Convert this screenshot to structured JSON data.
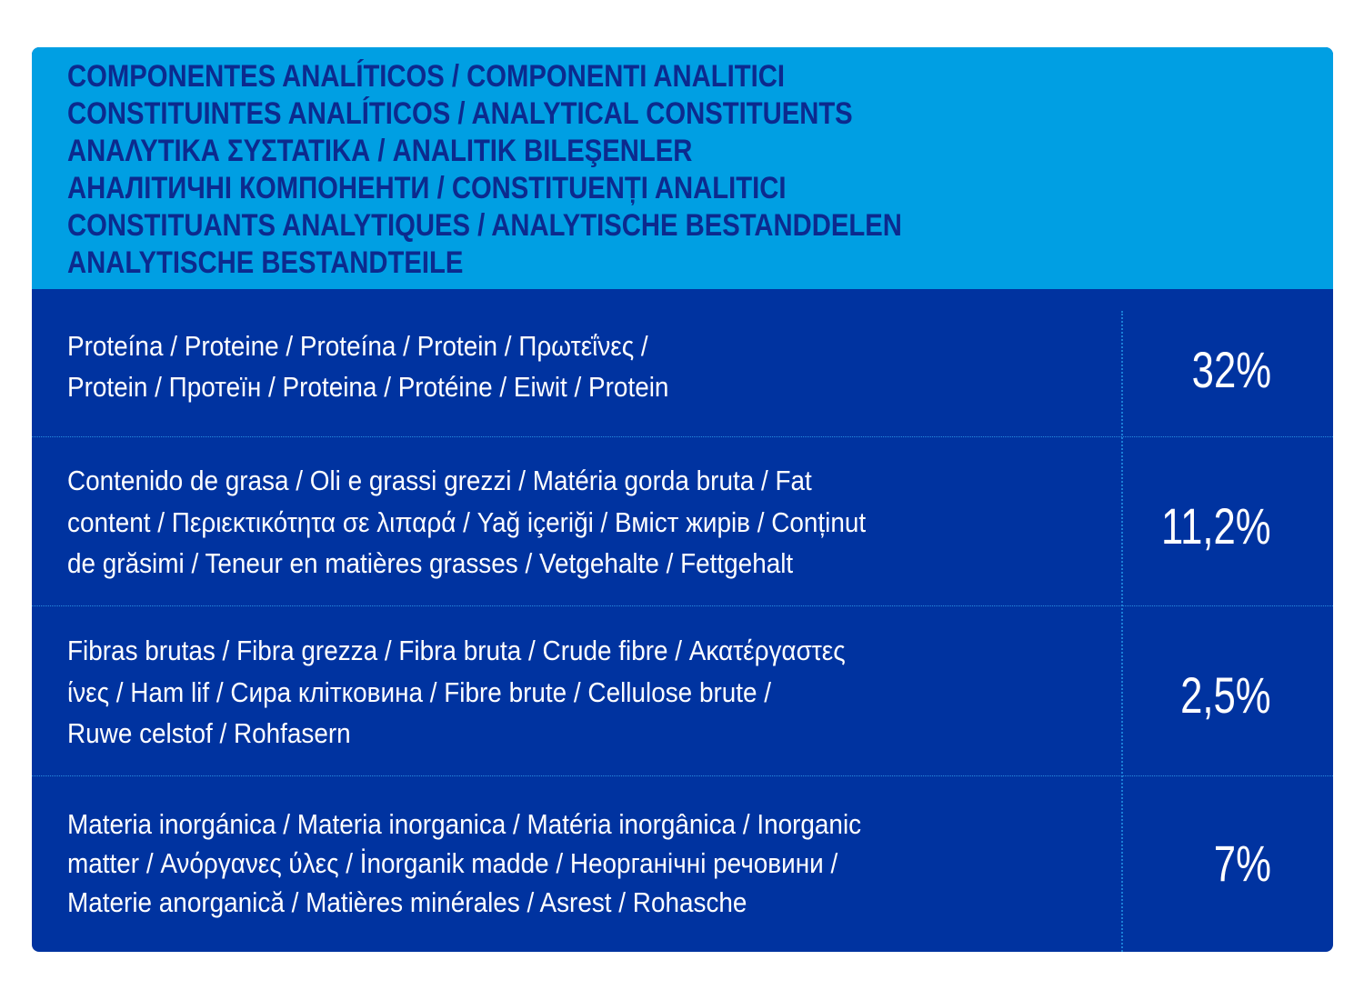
{
  "header": {
    "lines": [
      "COMPONENTES ANALÍTICOS / COMPONENTI ANALITICI",
      "CONSTITUINTES ANALÍTICOS / ANALYTICAL CONSTITUENTS",
      "ΑΝΑΛΥΤΙΚΑ ΣΥΣΤΑΤΙΚΑ / ANALITIK BILEŞENLER",
      "АНАЛІТИЧНІ КОМПОНЕНТИ / CONSTITUENȚI ANALITICI",
      "CONSTITUANTS ANALYTIQUES / ANALYTISCHE BESTANDDELEN",
      "ANALYTISCHE BESTANDTEILE"
    ]
  },
  "rows": [
    {
      "lines": [
        "Proteína / Proteine / Proteína / Protein / Πρωτεΐνες /",
        "Protein / Протеїн / Proteina / Protéine / Eiwit / Protein"
      ],
      "value": "32%"
    },
    {
      "lines": [
        "Contenido de grasa / Oli e grassi grezzi / Matéria gorda bruta / Fat",
        "content / Περιεκτικότητα σε λιπαρά / Yağ içeriği / Вміст жирів / Conținut",
        "de grăsimi / Teneur en matières grasses / Vetgehalte / Fettgehalt"
      ],
      "value": "11,2%"
    },
    {
      "lines": [
        "Fibras brutas / Fibra grezza / Fibra bruta / Crude fibre / Ακατέργαστες",
        "ίνες / Ham lif / Сира клітковина / Fibre brute / Cellulose brute /",
        "Ruwe celstof / Rohfasern"
      ],
      "value": "2,5%"
    },
    {
      "lines": [
        "Materia inorgánica / Materia inorganica / Matéria inorgânica / Inorganic",
        "matter / Ανόργανες ύλες / İnorganik madde / Неорганічні речовини /",
        "Materie anorganică / Matières minérales / Asrest / Rohasche"
      ],
      "value": "7%"
    }
  ],
  "colors": {
    "header_bg": "#009fe3",
    "header_text": "#0c2a8e",
    "body_bg": "#0033a0",
    "divider": "#2a8fe0"
  }
}
